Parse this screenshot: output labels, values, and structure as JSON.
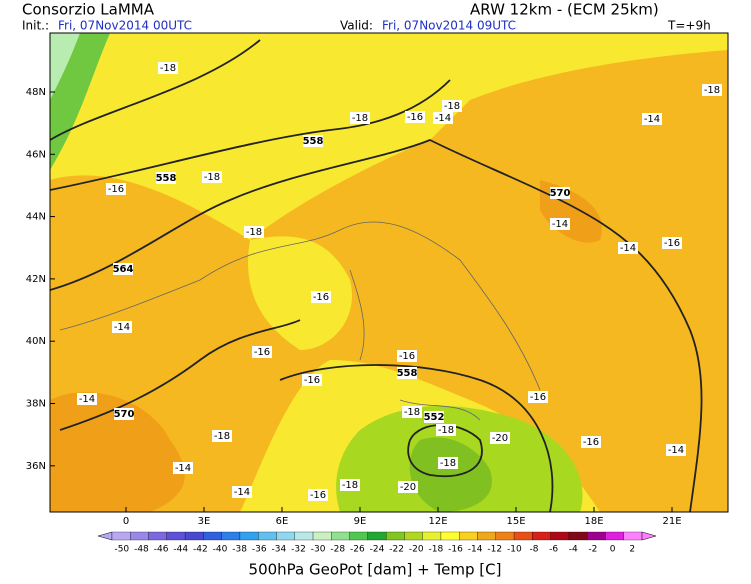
{
  "header": {
    "title": "Consorzio LaMMA",
    "model": "ARW 12km - (ECM 25km)",
    "init_label": "Init.:",
    "init_time": "Fri, 07Nov2014 00UTC",
    "valid_label": "Valid:",
    "valid_time": "Fri, 07Nov2014 09UTC",
    "lead": "T=+9h"
  },
  "map": {
    "lat_labels": [
      "48N",
      "46N",
      "44N",
      "42N",
      "40N",
      "38N",
      "36N"
    ],
    "lon_labels": [
      "0",
      "3E",
      "6E",
      "9E",
      "12E",
      "15E",
      "18E",
      "21E"
    ],
    "temp_labels": [
      -18,
      -18,
      -16,
      -14,
      -18,
      -18,
      -14,
      -18,
      -16,
      -18,
      -14,
      -14,
      -16,
      -16,
      -14,
      -16,
      -16,
      -16,
      -16,
      -14,
      -18,
      -18,
      -20,
      -16,
      -14,
      -18,
      -18,
      -14,
      -14,
      -16,
      -18,
      -20
    ],
    "geopot_labels": [
      558,
      558,
      570,
      564,
      558,
      570,
      552
    ]
  },
  "colorbar": {
    "labels": [
      -50,
      -48,
      -46,
      -44,
      -42,
      -40,
      -38,
      -36,
      -34,
      -32,
      -30,
      -28,
      -26,
      -24,
      -22,
      -20,
      -18,
      -16,
      -14,
      -12,
      -10,
      -8,
      -6,
      -4,
      -2,
      0,
      2
    ],
    "colors": [
      "#b8a8f0",
      "#9a88e8",
      "#7c68e0",
      "#5e50d8",
      "#4848d0",
      "#3060e0",
      "#2a80e8",
      "#30a0f0",
      "#60c0f0",
      "#90d8f0",
      "#b8e8e8",
      "#c8f0c0",
      "#90e090",
      "#50c850",
      "#20a830",
      "#80c820",
      "#b0d820",
      "#e8f030",
      "#ffff30",
      "#f8d020",
      "#f0a818",
      "#f08018",
      "#e85018",
      "#d82018",
      "#b00818",
      "#800818",
      "#a00090",
      "#e020e0",
      "#ff80ff"
    ],
    "caption": "500hPa GeoPot [dam] + Temp [C]"
  }
}
